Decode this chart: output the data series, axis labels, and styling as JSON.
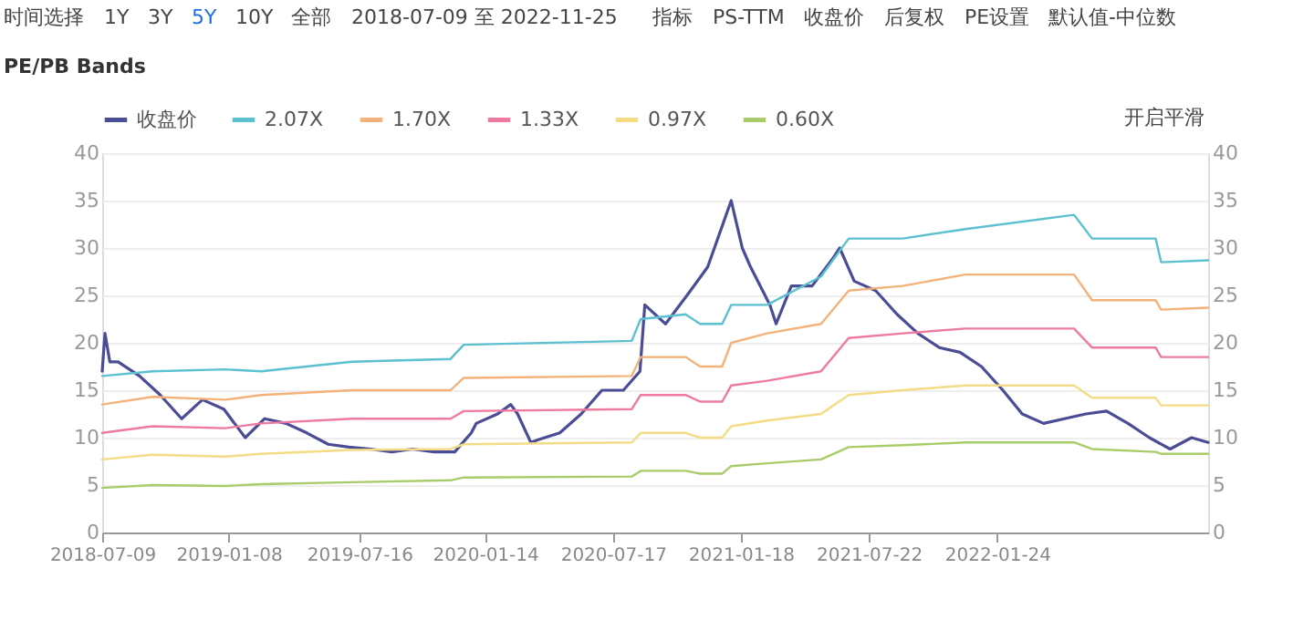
{
  "chart_data": {
    "type": "line",
    "title": "PE/PB Bands",
    "annotations": [
      "时间选择",
      "1Y",
      "3Y",
      "5Y",
      "10Y",
      "全部",
      "2018-07-09 至 2022-11-25",
      "指标",
      "PS-TTM",
      "收盘价",
      "后复权",
      "PE设置",
      "默认值-中位数",
      "开启平滑"
    ],
    "series": [
      {
        "name": "收盘价",
        "color": "#4b4c96",
        "x": [
          "2018-07-09",
          "2018-07-13",
          "2018-07-20",
          "2018-08-01",
          "2018-09-01",
          "2018-10-01",
          "2018-11-01",
          "2018-12-01",
          "2019-01-01",
          "2019-02-01",
          "2019-03-01",
          "2019-04-01",
          "2019-05-01",
          "2019-06-01",
          "2019-07-01",
          "2019-08-01",
          "2019-09-01",
          "2019-10-01",
          "2019-11-01",
          "2019-12-01",
          "2019-12-25",
          "2020-01-01",
          "2020-02-01",
          "2020-02-20",
          "2020-03-01",
          "2020-03-20",
          "2020-04-01",
          "2020-05-01",
          "2020-06-01",
          "2020-07-01",
          "2020-08-01",
          "2020-08-25",
          "2020-09-01",
          "2020-10-01",
          "2020-11-01",
          "2020-12-01",
          "2021-01-04",
          "2021-01-20",
          "2021-02-01",
          "2021-03-01",
          "2021-03-10",
          "2021-04-01",
          "2021-05-01",
          "2021-06-01",
          "2021-06-10",
          "2021-07-01",
          "2021-08-01",
          "2021-09-01",
          "2021-10-01",
          "2021-11-01",
          "2021-12-01",
          "2022-01-01",
          "2022-02-01",
          "2022-03-01",
          "2022-04-01",
          "2022-05-01",
          "2022-06-01",
          "2022-07-01",
          "2022-08-01",
          "2022-09-01",
          "2022-10-01",
          "2022-11-01",
          "2022-11-25"
        ],
        "values": [
          17,
          21,
          18,
          18,
          16.5,
          14.5,
          12,
          14,
          13,
          10,
          12,
          11.5,
          10.5,
          9.3,
          9,
          8.8,
          8.5,
          8.8,
          8.5,
          8.5,
          10.5,
          11.5,
          12.5,
          13.5,
          12.5,
          9.5,
          9.8,
          10.5,
          12.5,
          15,
          15,
          17,
          24,
          22,
          25,
          28,
          35,
          30,
          28,
          24,
          22,
          26,
          26,
          29,
          30,
          26.5,
          25.5,
          23,
          21,
          19.5,
          19,
          17.5,
          15,
          12.5,
          11.5,
          12,
          12.5,
          12.8,
          11.5,
          10,
          8.8,
          10,
          9.5
        ]
      },
      {
        "name": "2.07X",
        "color": "#5bc0cf",
        "x": [
          "2018-07-09",
          "2018-09-20",
          "2019-01-03",
          "2019-02-24",
          "2019-07-05",
          "2019-11-25",
          "2019-12-14",
          "2020-08-13",
          "2020-08-26",
          "2020-10-30",
          "2020-11-20",
          "2020-12-22",
          "2021-01-04",
          "2021-02-25",
          "2021-05-14",
          "2021-06-23",
          "2021-09-09",
          "2021-12-09",
          "2022-05-15",
          "2022-06-10",
          "2022-09-10",
          "2022-09-18",
          "2022-11-25"
        ],
        "values": [
          16.5,
          17,
          17.2,
          17,
          18,
          18.3,
          19.8,
          20.2,
          22.5,
          23,
          22,
          22,
          24,
          24,
          27,
          31,
          31,
          32,
          33.5,
          31,
          31,
          28.5,
          28.7
        ]
      },
      {
        "name": "1.70X",
        "color": "#f2b27a",
        "x": [
          "2018-07-09",
          "2018-09-20",
          "2019-01-03",
          "2019-02-24",
          "2019-07-05",
          "2019-11-25",
          "2019-12-14",
          "2020-08-13",
          "2020-08-26",
          "2020-10-30",
          "2020-11-20",
          "2020-12-22",
          "2021-01-04",
          "2021-02-25",
          "2021-05-14",
          "2021-06-23",
          "2021-09-09",
          "2021-12-09",
          "2022-05-15",
          "2022-06-10",
          "2022-09-10",
          "2022-09-18",
          "2022-11-25"
        ],
        "values": [
          13.5,
          14.3,
          14,
          14.5,
          15,
          15,
          16.3,
          16.5,
          18.5,
          18.5,
          17.5,
          17.5,
          20,
          21,
          22,
          25.5,
          26,
          27.2,
          27.2,
          24.5,
          24.5,
          23.5,
          23.7
        ]
      },
      {
        "name": "1.33X",
        "color": "#ee7aa0",
        "x": [
          "2018-07-09",
          "2018-09-20",
          "2019-01-03",
          "2019-02-24",
          "2019-07-05",
          "2019-11-25",
          "2019-12-14",
          "2020-08-13",
          "2020-08-26",
          "2020-10-30",
          "2020-11-20",
          "2020-12-22",
          "2021-01-04",
          "2021-02-25",
          "2021-05-14",
          "2021-06-23",
          "2021-09-09",
          "2021-12-09",
          "2022-05-15",
          "2022-06-10",
          "2022-09-10",
          "2022-09-18",
          "2022-11-25"
        ],
        "values": [
          10.5,
          11.2,
          11,
          11.5,
          12,
          12,
          12.8,
          13,
          14.5,
          14.5,
          13.8,
          13.8,
          15.5,
          16,
          17,
          20.5,
          21,
          21.5,
          21.5,
          19.5,
          19.5,
          18.5,
          18.5
        ]
      },
      {
        "name": "0.97X",
        "color": "#f3dc85",
        "x": [
          "2018-07-09",
          "2018-09-20",
          "2019-01-03",
          "2019-02-24",
          "2019-07-05",
          "2019-11-25",
          "2019-12-14",
          "2020-08-13",
          "2020-08-26",
          "2020-10-30",
          "2020-11-20",
          "2020-12-22",
          "2021-01-04",
          "2021-02-25",
          "2021-05-14",
          "2021-06-23",
          "2021-09-09",
          "2021-12-09",
          "2022-05-15",
          "2022-06-10",
          "2022-09-10",
          "2022-09-18",
          "2022-11-25"
        ],
        "values": [
          7.7,
          8.2,
          8,
          8.3,
          8.7,
          8.8,
          9.3,
          9.5,
          10.5,
          10.5,
          10,
          10,
          11.2,
          11.8,
          12.5,
          14.5,
          15,
          15.5,
          15.5,
          14.2,
          14.2,
          13.4,
          13.4
        ]
      },
      {
        "name": "0.60X",
        "color": "#a8cc6a",
        "x": [
          "2018-07-09",
          "2018-09-20",
          "2019-01-03",
          "2019-02-24",
          "2019-07-05",
          "2019-11-25",
          "2019-12-14",
          "2020-08-13",
          "2020-08-26",
          "2020-10-30",
          "2020-11-20",
          "2020-12-22",
          "2021-01-04",
          "2021-02-25",
          "2021-05-14",
          "2021-06-23",
          "2021-09-09",
          "2021-12-09",
          "2022-05-15",
          "2022-06-10",
          "2022-09-10",
          "2022-09-18",
          "2022-11-25"
        ],
        "values": [
          4.7,
          5,
          4.9,
          5.1,
          5.3,
          5.5,
          5.8,
          5.9,
          6.5,
          6.5,
          6.2,
          6.2,
          7,
          7.3,
          7.7,
          9,
          9.2,
          9.5,
          9.5,
          8.8,
          8.5,
          8.3,
          8.3
        ]
      }
    ],
    "xlim": [
      "2018-07-09",
      "2022-11-25"
    ],
    "xticks": [
      "2018-07-09",
      "2019-01-08",
      "2019-07-16",
      "2020-01-14",
      "2020-07-17",
      "2021-01-18",
      "2021-07-22",
      "2022-01-24"
    ],
    "ylim": [
      0,
      40
    ],
    "yticks": [
      0,
      5,
      10,
      15,
      20,
      25,
      30,
      35,
      40
    ],
    "y2lim": [
      0,
      40
    ],
    "y2ticks": [
      0,
      5,
      10,
      15,
      20,
      25,
      30,
      35,
      40
    ],
    "grid": "y",
    "legend": "top left",
    "marker": "none",
    "line_style": "solid"
  }
}
